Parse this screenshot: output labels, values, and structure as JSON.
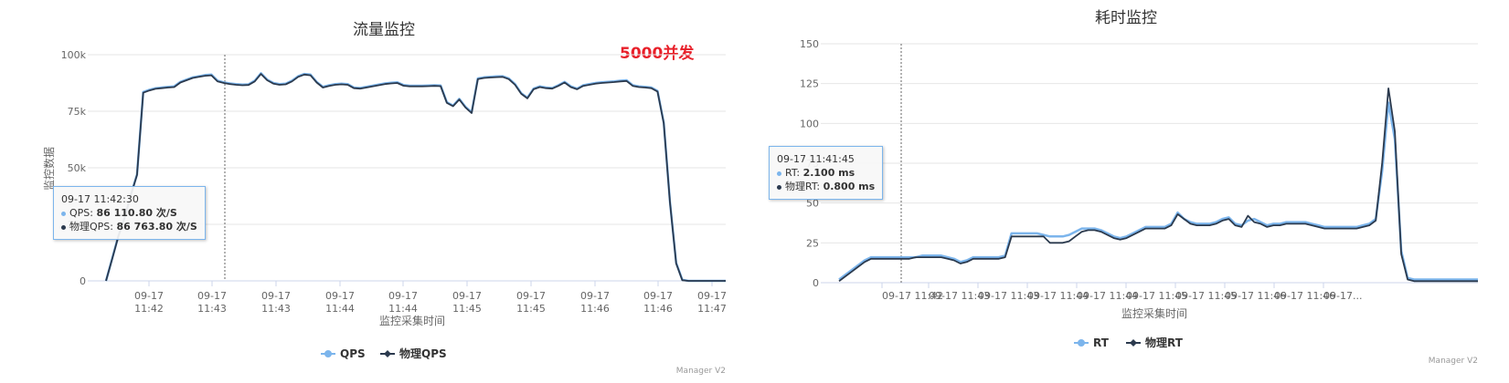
{
  "colors": {
    "series1": "#7cb5ec",
    "series2": "#2b3a4e",
    "annotation": "#e8202a"
  },
  "chart_data": [
    {
      "type": "line",
      "title": "流量监控",
      "annotation": "5000并发",
      "ylabel": "监控数据",
      "xlabel": "监控采集时间",
      "ylim": [
        0,
        100000
      ],
      "yticks": [
        "0",
        "25k",
        "50k",
        "75k",
        "100k"
      ],
      "ytick_values": [
        0,
        25000,
        50000,
        75000,
        100000
      ],
      "xticks": [
        "09-17|11:42",
        "09-17|11:43",
        "09-17|11:43",
        "09-17|11:44",
        "09-17|11:44",
        "09-17|11:45",
        "09-17|11:45",
        "09-17|11:46",
        "09-17|11:46",
        "09-17|11:47"
      ],
      "x_count": 101,
      "series": [
        {
          "name": "QPS",
          "values": [
            0,
            10000,
            20000,
            28000,
            38000,
            47000,
            83500,
            84500,
            85200,
            85500,
            85800,
            86000,
            88000,
            89000,
            90000,
            90500,
            91000,
            91200,
            88500,
            87800,
            87300,
            87000,
            86800,
            86900,
            88500,
            91800,
            89000,
            87500,
            87000,
            87200,
            88500,
            90500,
            91500,
            91200,
            88000,
            85800,
            86500,
            87000,
            87200,
            87000,
            85500,
            85300,
            85800,
            86300,
            86800,
            87300,
            87600,
            87800,
            86600,
            86300,
            86300,
            86300,
            86400,
            86500,
            86400,
            79000,
            77500,
            80500,
            77000,
            74500,
            89500,
            90000,
            90200,
            90400,
            90500,
            89500,
            87000,
            83000,
            81000,
            85000,
            86000,
            85500,
            85300,
            86500,
            88000,
            86000,
            85000,
            86500,
            87000,
            87500,
            87800,
            88000,
            88200,
            88500,
            88700,
            86500,
            86000,
            85800,
            85500,
            84000,
            70000,
            35000,
            8000,
            500,
            0,
            0,
            0,
            0,
            0,
            0,
            0
          ]
        },
        {
          "name": "物理QPS",
          "values": [
            0,
            9800,
            19800,
            27800,
            37800,
            46800,
            83200,
            84200,
            84900,
            85200,
            85500,
            85700,
            87700,
            88700,
            89700,
            90200,
            90700,
            90900,
            88200,
            87500,
            87000,
            86700,
            86500,
            86600,
            88200,
            91500,
            88700,
            87200,
            86700,
            86900,
            88200,
            90200,
            91200,
            90900,
            87700,
            85500,
            86200,
            86700,
            86900,
            86700,
            85200,
            85000,
            85500,
            86000,
            86500,
            87000,
            87300,
            87500,
            86300,
            86000,
            86000,
            86000,
            86100,
            86200,
            86100,
            78700,
            77200,
            80200,
            76700,
            74200,
            89200,
            89700,
            89900,
            90100,
            90200,
            89200,
            86700,
            82700,
            80700,
            84700,
            85700,
            85200,
            85000,
            86200,
            87700,
            85700,
            84700,
            86200,
            86700,
            87200,
            87500,
            87700,
            87900,
            88200,
            88400,
            86200,
            85700,
            85500,
            85200,
            83700,
            69700,
            34700,
            7700,
            300,
            0,
            0,
            0,
            0,
            0,
            0,
            0
          ]
        }
      ],
      "legend": [
        "QPS",
        "物理QPS"
      ],
      "credit": "Manager V2",
      "tooltip": {
        "time": "09-17 11:42:30",
        "rows": [
          {
            "label": "QPS",
            "value": "86 110.80 次/S"
          },
          {
            "label": "物理QPS",
            "value": "86 763.80 次/S"
          }
        ]
      }
    },
    {
      "type": "line",
      "title": "耗时监控",
      "ylim": [
        0,
        150
      ],
      "yticks": [
        "0",
        "25",
        "50",
        "75",
        "100",
        "125",
        "150"
      ],
      "ytick_values": [
        0,
        25,
        50,
        75,
        100,
        125,
        150
      ],
      "xlabel": "监控采集时间",
      "xticks": [
        "09-17 11:42",
        "09-17 11:43",
        "09-17 11:43",
        "09-17 11:44",
        "09-17 11:44",
        "09-17 11:45",
        "09-17 11:45",
        "09-17 11:46",
        "09-17 11:46",
        "09-17..."
      ],
      "x_count": 101,
      "series": [
        {
          "name": "RT",
          "values": [
            2,
            5,
            8,
            11,
            14,
            16,
            16,
            16,
            16,
            16,
            16,
            16,
            16,
            17,
            17,
            17,
            17,
            16,
            15,
            13,
            14,
            16,
            16,
            16,
            16,
            16,
            17,
            31,
            31,
            31,
            31,
            31,
            30,
            29,
            29,
            29,
            30,
            32,
            34,
            34,
            34,
            33,
            31,
            29,
            28,
            29,
            31,
            33,
            35,
            35,
            35,
            35,
            37,
            44,
            40,
            38,
            37,
            37,
            37,
            38,
            40,
            41,
            37,
            36,
            39,
            40,
            38,
            36,
            37,
            37,
            38,
            38,
            38,
            38,
            37,
            36,
            35,
            35,
            35,
            35,
            35,
            35,
            36,
            37,
            40,
            70,
            113,
            90,
            20,
            3,
            2,
            2,
            2,
            2,
            2,
            2,
            2,
            2,
            2,
            2,
            2
          ]
        },
        {
          "name": "物理RT",
          "values": [
            1,
            4,
            7,
            10,
            13,
            15,
            15,
            15,
            15,
            15,
            15,
            15,
            16,
            16,
            16,
            16,
            16,
            15,
            14,
            12,
            13,
            15,
            15,
            15,
            15,
            15,
            16,
            29,
            29,
            29,
            29,
            29,
            29,
            25,
            25,
            25,
            26,
            29,
            32,
            33,
            33,
            32,
            30,
            28,
            27,
            28,
            30,
            32,
            34,
            34,
            34,
            34,
            36,
            43,
            40,
            37,
            36,
            36,
            36,
            37,
            39,
            40,
            36,
            35,
            42,
            38,
            37,
            35,
            36,
            36,
            37,
            37,
            37,
            37,
            36,
            35,
            34,
            34,
            34,
            34,
            34,
            34,
            35,
            36,
            39,
            75,
            122,
            95,
            18,
            2,
            1,
            1,
            1,
            1,
            1,
            1,
            1,
            1,
            1,
            1,
            1
          ]
        }
      ],
      "legend": [
        "RT",
        "物理RT"
      ],
      "credit": "Manager V2",
      "tooltip": {
        "time": "09-17 11:41:45",
        "rows": [
          {
            "label": "RT",
            "value": "2.100 ms"
          },
          {
            "label": "物理RT",
            "value": "0.800 ms"
          }
        ]
      }
    }
  ]
}
